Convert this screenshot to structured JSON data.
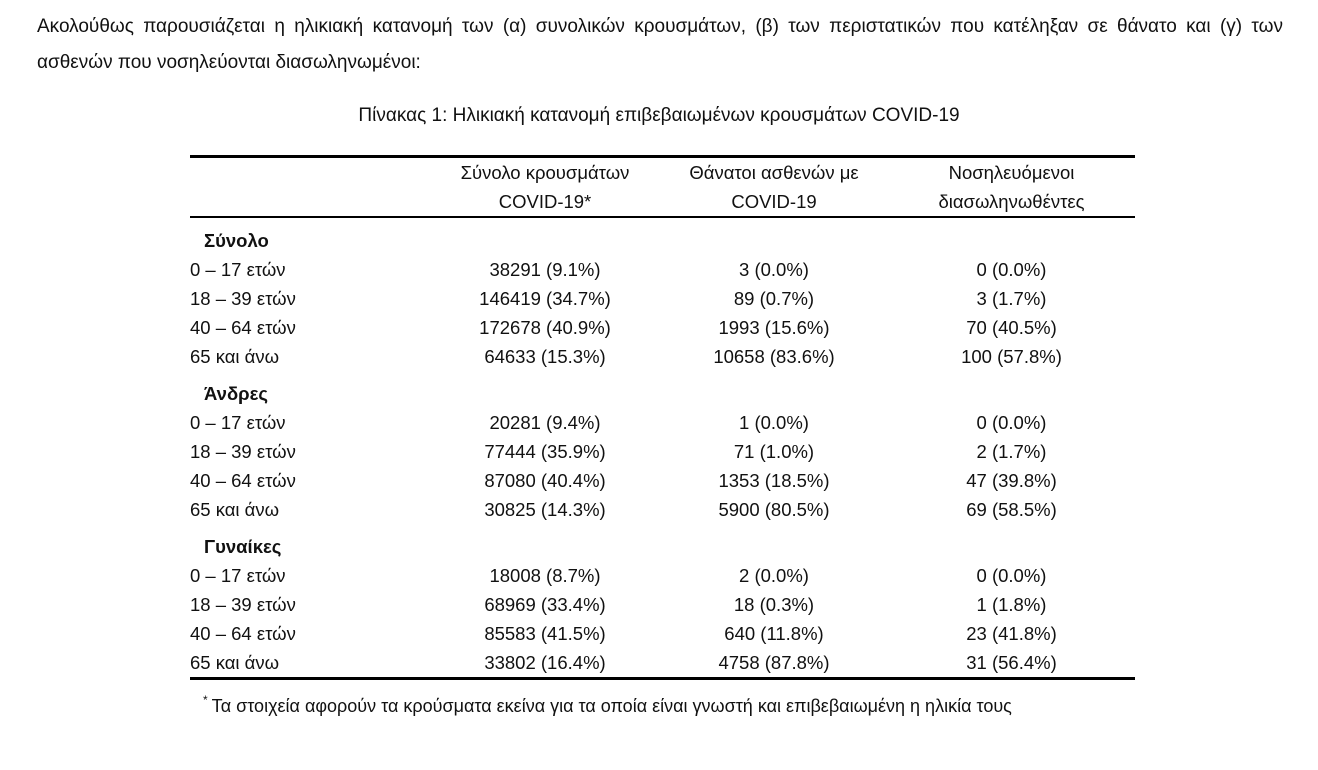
{
  "intro": {
    "lines": [
      "Ακολούθως παρουσιάζεται η ηλικιακή κατανομή των (α) συνολικών κρουσμάτων, (β) των περιστατικών που κατέληξαν σε θάνατο και (γ) των",
      "ασθενών που νοσηλεύονται διασωληνωμένοι:"
    ]
  },
  "table": {
    "title": "Πίνακας 1: Ηλικιακή κατανομή επιβεβαιωμένων κρουσμάτων COVID-19",
    "columns": [
      {
        "line1": "",
        "line2": ""
      },
      {
        "line1": "Σύνολο κρουσμάτων",
        "line2": "COVID-19*"
      },
      {
        "line1": "Θάνατοι ασθενών με",
        "line2": "COVID-19"
      },
      {
        "line1": "Νοσηλευόμενοι",
        "line2": "διασωληνωθέντες"
      }
    ],
    "sections": [
      {
        "label": "Σύνολο",
        "rows": [
          {
            "label": "0 – 17 ετών",
            "cases": "38291 (9.1%)",
            "deaths": "3 (0.0%)",
            "intubated": "0 (0.0%)"
          },
          {
            "label": "18 – 39 ετών",
            "cases": "146419 (34.7%)",
            "deaths": "89 (0.7%)",
            "intubated": "3 (1.7%)"
          },
          {
            "label": "40 – 64 ετών",
            "cases": "172678 (40.9%)",
            "deaths": "1993 (15.6%)",
            "intubated": "70 (40.5%)"
          },
          {
            "label": "65 και άνω",
            "cases": "64633 (15.3%)",
            "deaths": "10658 (83.6%)",
            "intubated": "100 (57.8%)"
          }
        ]
      },
      {
        "label": "Άνδρες",
        "rows": [
          {
            "label": "0 – 17 ετών",
            "cases": "20281 (9.4%)",
            "deaths": "1 (0.0%)",
            "intubated": "0 (0.0%)"
          },
          {
            "label": "18 – 39 ετών",
            "cases": "77444 (35.9%)",
            "deaths": "71 (1.0%)",
            "intubated": "2 (1.7%)"
          },
          {
            "label": "40 – 64 ετών",
            "cases": "87080 (40.4%)",
            "deaths": "1353 (18.5%)",
            "intubated": "47 (39.8%)"
          },
          {
            "label": "65 και άνω",
            "cases": "30825 (14.3%)",
            "deaths": "5900 (80.5%)",
            "intubated": "69 (58.5%)"
          }
        ]
      },
      {
        "label": "Γυναίκες",
        "rows": [
          {
            "label": "0 – 17 ετών",
            "cases": "18008 (8.7%)",
            "deaths": "2 (0.0%)",
            "intubated": "0 (0.0%)"
          },
          {
            "label": "18 – 39 ετών",
            "cases": "68969 (33.4%)",
            "deaths": "18 (0.3%)",
            "intubated": "1 (1.8%)"
          },
          {
            "label": "40 – 64 ετών",
            "cases": "85583 (41.5%)",
            "deaths": "640 (11.8%)",
            "intubated": "23 (41.8%)"
          },
          {
            "label": "65 και άνω",
            "cases": "33802 (16.4%)",
            "deaths": "4758 (87.8%)",
            "intubated": "31 (56.4%)"
          }
        ]
      }
    ],
    "footnote": {
      "marker": "*",
      "text": "Τα στοιχεία αφορούν τα κρούσματα εκείνα για τα οποία είναι γνωστή και επιβεβαιωμένη η ηλικία τους"
    }
  },
  "colors": {
    "text": "#111111",
    "rule": "#000000",
    "background": "#ffffff"
  }
}
